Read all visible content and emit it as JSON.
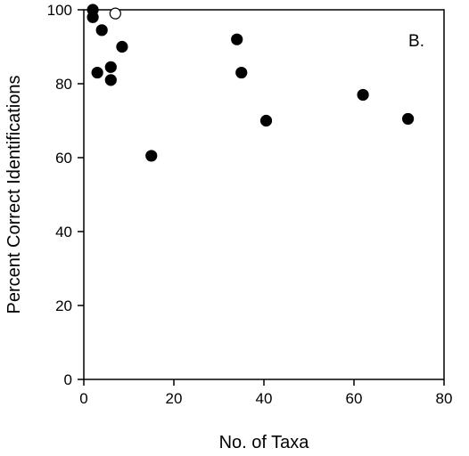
{
  "chart_data": {
    "type": "scatter",
    "title": "",
    "panel_label": "B.",
    "xlabel": "No. of Taxa",
    "ylabel": "Percent Correct Identifications",
    "xlim": [
      0,
      80
    ],
    "ylim": [
      0,
      100
    ],
    "xticks": [
      0,
      20,
      40,
      60,
      80
    ],
    "yticks": [
      0,
      20,
      40,
      60,
      80,
      100
    ],
    "grid": false,
    "series": [
      {
        "marker": "filled-circle",
        "color": "#000000",
        "points": [
          {
            "x": 2,
            "y": 100
          },
          {
            "x": 2,
            "y": 98
          },
          {
            "x": 4,
            "y": 94.5
          },
          {
            "x": 3,
            "y": 83
          },
          {
            "x": 6,
            "y": 84.5
          },
          {
            "x": 6,
            "y": 81
          },
          {
            "x": 8.5,
            "y": 90
          },
          {
            "x": 15,
            "y": 60.5
          },
          {
            "x": 34,
            "y": 92
          },
          {
            "x": 35,
            "y": 83
          },
          {
            "x": 40.5,
            "y": 70
          },
          {
            "x": 62,
            "y": 77
          },
          {
            "x": 72,
            "y": 70.5
          }
        ]
      },
      {
        "marker": "open-circle",
        "color": "#000000",
        "points": [
          {
            "x": 7,
            "y": 99
          }
        ]
      }
    ]
  }
}
